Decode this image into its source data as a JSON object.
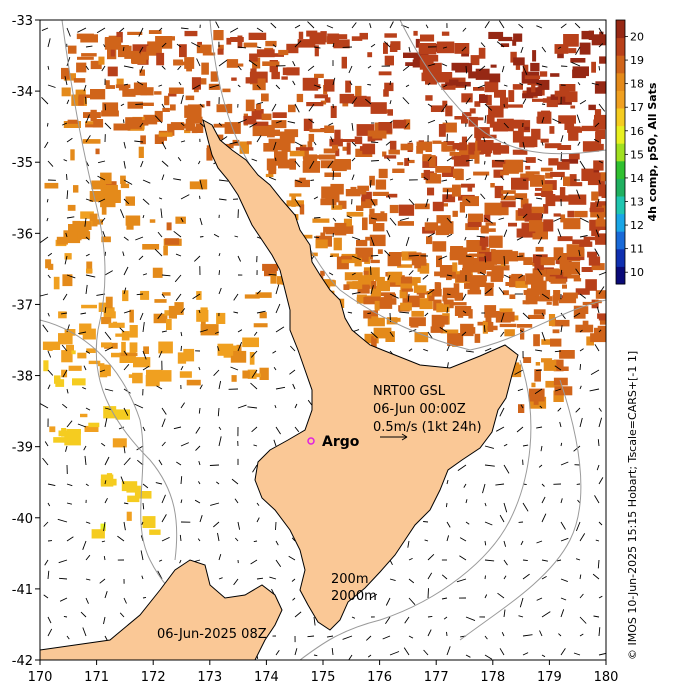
{
  "map": {
    "lon_ticks": [
      "170",
      "171",
      "172",
      "173",
      "174",
      "175",
      "176",
      "177",
      "178",
      "179",
      "180"
    ],
    "lat_ticks": [
      "-33",
      "-34",
      "-35",
      "-36",
      "-37",
      "-38",
      "-39",
      "-40",
      "-41",
      "-42"
    ],
    "lon_range": [
      170,
      180
    ],
    "lat_range": [
      -42,
      -33
    ]
  },
  "colorbar": {
    "label": "4h comp, p50, All Sats",
    "ticks": [
      "20",
      "19",
      "18",
      "17",
      "16",
      "15",
      "14",
      "13",
      "12",
      "11",
      "10"
    ],
    "range": [
      9.5,
      20.7
    ],
    "colors": [
      "#0a0a78",
      "#1030b0",
      "#1a6ad8",
      "#1aa6e6",
      "#20c6b0",
      "#20b060",
      "#30c030",
      "#a0e020",
      "#e8f020",
      "#f5cc20",
      "#f0a020",
      "#e48a1a",
      "#d0641a",
      "#b8401a",
      "#962814"
    ]
  },
  "annotations": {
    "product": "NRT00 GSL",
    "time": "06-Jun 00:00Z",
    "vector_scale": "0.5m/s (1kt 24h)",
    "argo": "Argo",
    "depth_200": "200m",
    "depth_2000": "2000m",
    "date_bottom": "06-Jun-2025 08Z",
    "credit": "© IMOS 10-Jun-2025 15:15 Hobart; Tscale=CARS+[-1 1]"
  },
  "colors": {
    "land": "#fac896",
    "coast": "#000000",
    "isobath": "#9a9a9a",
    "argo_marker": "#e020e0"
  }
}
